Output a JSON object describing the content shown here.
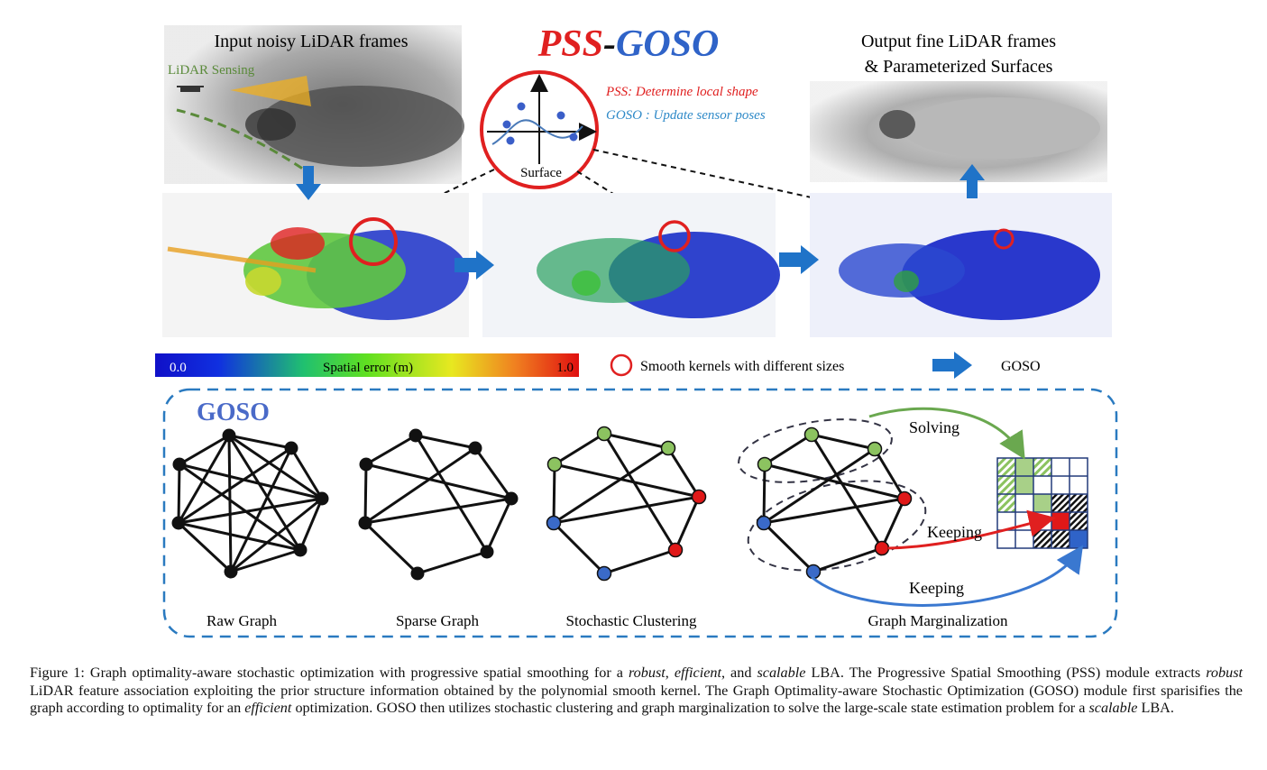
{
  "figure": {
    "title_red": "PSS",
    "title_dash": "-",
    "title_blue": "GOSO",
    "input_label": "Input noisy LiDAR frames",
    "lidar_sensing": "LiDAR Sensing",
    "output_label_line1": "Output fine LiDAR frames",
    "output_label_line2": "& Parameterized Surfaces",
    "pss_note": "PSS: Determine local shape",
    "goso_note": "GOSO : Update sensor poses",
    "surface_label": "Surface",
    "colorbar": {
      "min": "0.0",
      "label": "Spatial error (m)",
      "max": "1.0"
    },
    "legend_circle": "Smooth kernels with different sizes",
    "legend_arrow": "GOSO",
    "goso_box_title": "GOSO",
    "graphs": [
      "Raw Graph",
      "Sparse Graph",
      "Stochastic Clustering",
      "Graph Marginalization"
    ],
    "solving": "Solving",
    "keeping_red": "Keeping",
    "keeping_blue": "Keeping"
  },
  "caption": {
    "t1": "Figure 1:  Graph optimality-aware stochastic optimization with progressive spatial smoothing for a ",
    "e1": "robust",
    "t2": ", ",
    "e2": "efficient",
    "t3": ", and ",
    "e3": "scalable",
    "t4": " LBA. The Progressive Spatial Smoothing (PSS) module extracts ",
    "e4": "robust",
    "t5": " LiDAR feature association exploiting the prior structure information obtained by the polynomial smooth kernel.  The Graph Optimality-aware Stochastic Optimization (GOSO) module first sparisifies the graph according to optimality for an ",
    "e5": "efficient",
    "t6": " optimization.  GOSO then utilizes stochastic clustering and graph marginalization to solve the large-scale state estimation problem for a ",
    "e6": "scalable",
    "t7": " LBA."
  },
  "colors": {
    "red": "#e02020",
    "blue": "#2f63c8",
    "arrow_blue": "#1f73c8",
    "green": "#8cc360",
    "dash_blue": "#2a7ac0"
  }
}
